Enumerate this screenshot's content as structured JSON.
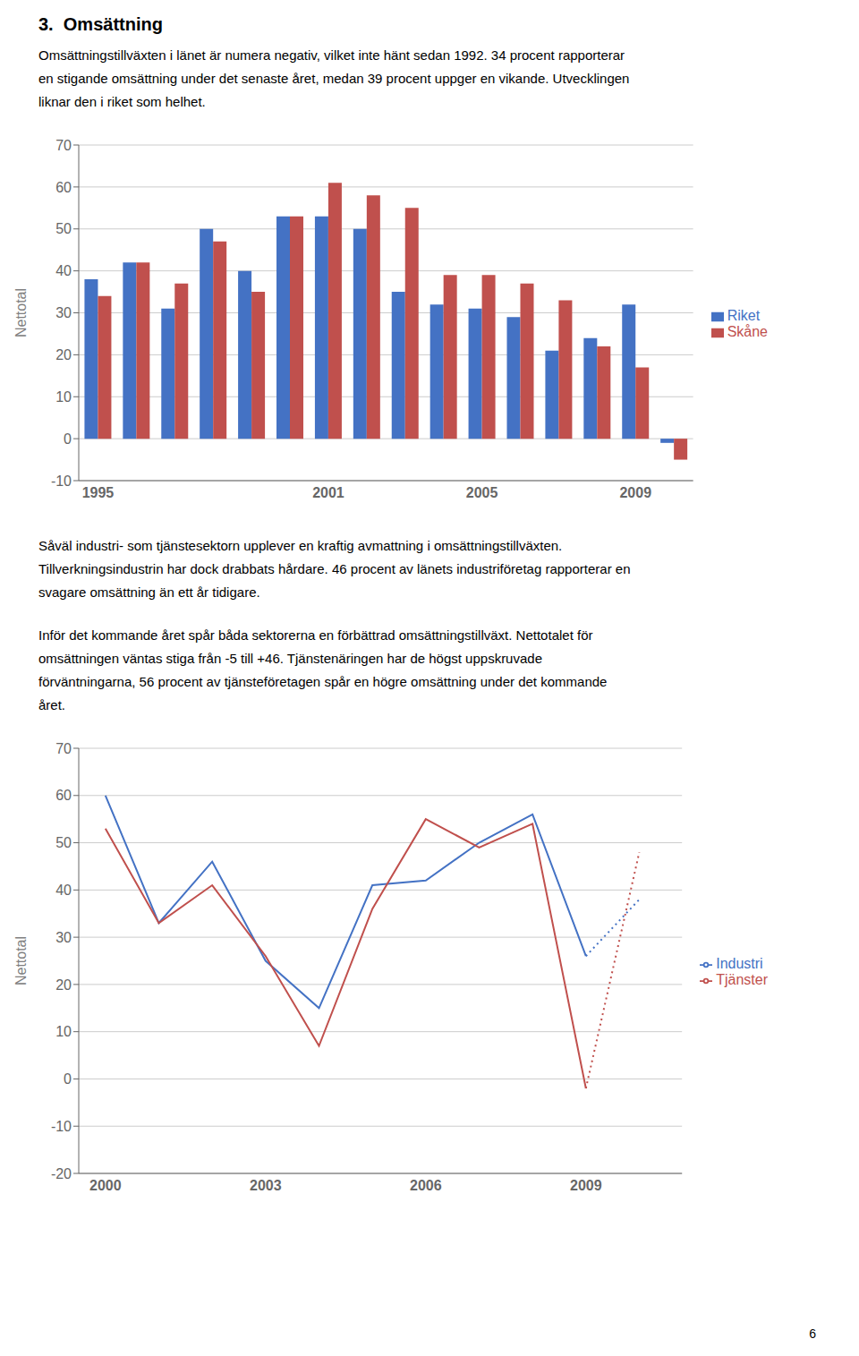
{
  "chart_data": [
    {
      "type": "bar",
      "title": "3.  Omsättning",
      "annotations": [
        "Omsättningstillväxten i länet är numera negativ, vilket inte hänt sedan 1992. 34 procent rapporterar",
        "en stigande omsättning under det senaste året, medan 39 procent uppger en vikande. Utvecklingen",
        "liknar den i riket som helhet."
      ],
      "categories": [
        "1995",
        null,
        null,
        null,
        null,
        null,
        "2001",
        null,
        null,
        null,
        "2005",
        null,
        null,
        null,
        "2009",
        null
      ],
      "series": [
        {
          "name": "Riket",
          "color": "#4472C4",
          "values": [
            38,
            42,
            31,
            50,
            40,
            53,
            53,
            50,
            35,
            32,
            31,
            29,
            21,
            24,
            32,
            -1
          ]
        },
        {
          "name": "Skåne",
          "color": "#C0504D",
          "values": [
            34,
            42,
            37,
            47,
            35,
            53,
            61,
            58,
            55,
            39,
            39,
            37,
            33,
            22,
            17,
            -5
          ]
        }
      ],
      "y_label": "Nettotal",
      "ylim": [
        -10,
        70
      ],
      "yticks": [
        -10,
        0,
        10,
        20,
        30,
        40,
        50,
        60,
        70
      ],
      "grid": true,
      "legend": "right"
    },
    {
      "type": "line",
      "annotations": [
        "Såväl industri- som tjänstesektorn upplever en kraftig avmattning i omsättningstillväxten.",
        "Tillverkningsindustrin har dock drabbats hårdare. 46 procent av länets industriföretag rapporterar en",
        "svagare omsättning än ett år tidigare.",
        "Inför det kommande året spår båda sektorerna en förbättrad omsättningstillväxt. Nettotalet för",
        "omsättningen väntas stiga från -5 till +46. Tjänstenäringen har de högst uppskruvade",
        "förväntningarna, 56 procent av tjänsteföretagen spår en högre omsättning under det kommande",
        "året.",
        "6"
      ],
      "x": [
        2000,
        2001,
        2002,
        2003,
        2004,
        2005,
        2006,
        2007,
        2008,
        2009,
        2010
      ],
      "series": [
        {
          "name": "Industri",
          "color": "#4472C4",
          "line_style": "solid",
          "values": [
            60,
            33,
            46,
            25,
            15,
            41,
            42,
            50,
            56,
            26,
            null
          ]
        },
        {
          "name": "Tjänster",
          "color": "#C0504D",
          "line_style": "solid",
          "values": [
            53,
            33,
            41,
            26,
            7,
            36,
            55,
            49,
            54,
            -2,
            null
          ]
        },
        {
          "color": "#4472C4",
          "line_style": "dotted",
          "values": [
            null,
            null,
            null,
            null,
            null,
            null,
            null,
            null,
            null,
            26,
            38
          ]
        },
        {
          "color": "#C0504D",
          "line_style": "dotted",
          "values": [
            null,
            null,
            null,
            null,
            null,
            null,
            null,
            null,
            null,
            -2,
            48
          ]
        }
      ],
      "y_label": "Nettotal",
      "xlim": [
        1999.5,
        2010.8
      ],
      "xticks": [
        2000,
        2003,
        2006,
        2009
      ],
      "ylim": [
        -20,
        70
      ],
      "yticks": [
        -20,
        -10,
        0,
        10,
        20,
        30,
        40,
        50,
        60,
        70
      ],
      "grid": true,
      "legend": "right"
    }
  ]
}
